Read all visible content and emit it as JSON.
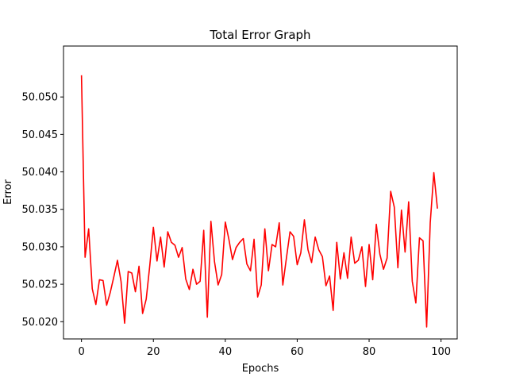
{
  "chart_data": {
    "type": "line",
    "title": "Total Error Graph",
    "xlabel": "Epochs",
    "ylabel": "Error",
    "xlim": [
      -5,
      104.5
    ],
    "ylim": [
      50.0177,
      50.0568
    ],
    "xticks": [
      0,
      20,
      40,
      60,
      80,
      100
    ],
    "xtick_labels": [
      "0",
      "20",
      "40",
      "60",
      "80",
      "100"
    ],
    "yticks": [
      50.02,
      50.025,
      50.03,
      50.035,
      50.04,
      50.045,
      50.05
    ],
    "ytick_labels": [
      "50.020",
      "50.025",
      "50.030",
      "50.035",
      "50.040",
      "50.045",
      "50.050"
    ],
    "grid": false,
    "series": [
      {
        "color": "#ff0000",
        "x": [
          0,
          1,
          2,
          3,
          4,
          5,
          6,
          7,
          8,
          9,
          10,
          11,
          12,
          13,
          14,
          15,
          16,
          17,
          18,
          19,
          20,
          21,
          22,
          23,
          24,
          25,
          26,
          27,
          28,
          29,
          30,
          31,
          32,
          33,
          34,
          35,
          36,
          37,
          38,
          39,
          40,
          41,
          42,
          43,
          44,
          45,
          46,
          47,
          48,
          49,
          50,
          51,
          52,
          53,
          54,
          55,
          56,
          57,
          58,
          59,
          60,
          61,
          62,
          63,
          64,
          65,
          66,
          67,
          68,
          69,
          70,
          71,
          72,
          73,
          74,
          75,
          76,
          77,
          78,
          79,
          80,
          81,
          82,
          83,
          84,
          85,
          86,
          87,
          88,
          89,
          90,
          91,
          92,
          93,
          94,
          95,
          96,
          97,
          98,
          99
        ],
        "values": [
          50.0529,
          50.0286,
          50.0324,
          50.0244,
          50.0223,
          50.0256,
          50.0255,
          50.0222,
          50.0239,
          50.026,
          50.0282,
          50.0254,
          50.0198,
          50.0267,
          50.0265,
          50.024,
          50.0274,
          50.0211,
          50.023,
          50.0275,
          50.0326,
          50.0281,
          50.0313,
          50.0273,
          50.032,
          50.0306,
          50.0302,
          50.0286,
          50.0299,
          50.0257,
          50.0243,
          50.027,
          50.025,
          50.0254,
          50.0322,
          50.0206,
          50.0334,
          50.028,
          50.0249,
          50.0263,
          50.0333,
          50.031,
          50.0283,
          50.0299,
          50.0306,
          50.0311,
          50.0277,
          50.0268,
          50.031,
          50.0233,
          50.0249,
          50.0324,
          50.0268,
          50.0303,
          50.03,
          50.0332,
          50.0249,
          50.0285,
          50.032,
          50.0314,
          50.0276,
          50.0292,
          50.0336,
          50.0296,
          50.0279,
          50.0313,
          50.0296,
          50.0287,
          50.0248,
          50.0261,
          50.0215,
          50.0306,
          50.0257,
          50.0292,
          50.0258,
          50.0313,
          50.0278,
          50.0282,
          50.03,
          50.0247,
          50.0303,
          50.0256,
          50.033,
          50.029,
          50.027,
          50.0285,
          50.0374,
          50.0353,
          50.0272,
          50.0349,
          50.0293,
          50.036,
          50.0254,
          50.0225,
          50.0312,
          50.0308,
          50.0193,
          50.0332,
          50.0399,
          50.0351
        ]
      }
    ]
  }
}
